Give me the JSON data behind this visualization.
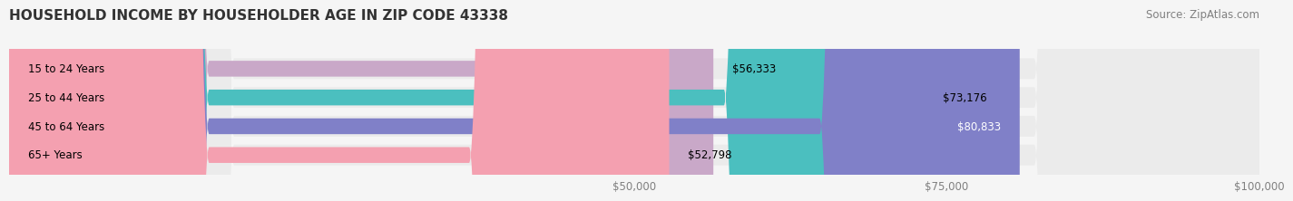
{
  "title": "HOUSEHOLD INCOME BY HOUSEHOLDER AGE IN ZIP CODE 43338",
  "source": "Source: ZipAtlas.com",
  "categories": [
    "15 to 24 Years",
    "25 to 44 Years",
    "45 to 64 Years",
    "65+ Years"
  ],
  "values": [
    56333,
    73176,
    80833,
    52798
  ],
  "labels": [
    "$56,333",
    "$73,176",
    "$80,833",
    "$52,798"
  ],
  "bar_colors": [
    "#c9a8c8",
    "#4bbfbf",
    "#8080c8",
    "#f4a0b0"
  ],
  "bar_track_color": "#ebebeb",
  "background_color": "#f5f5f5",
  "xlim": [
    0,
    100000
  ],
  "xticks": [
    50000,
    75000,
    100000
  ],
  "xticklabels": [
    "$50,000",
    "$75,000",
    "$100,000"
  ],
  "title_fontsize": 11,
  "source_fontsize": 8.5,
  "label_fontsize": 8.5,
  "ytick_fontsize": 8.5,
  "xtick_fontsize": 8.5
}
